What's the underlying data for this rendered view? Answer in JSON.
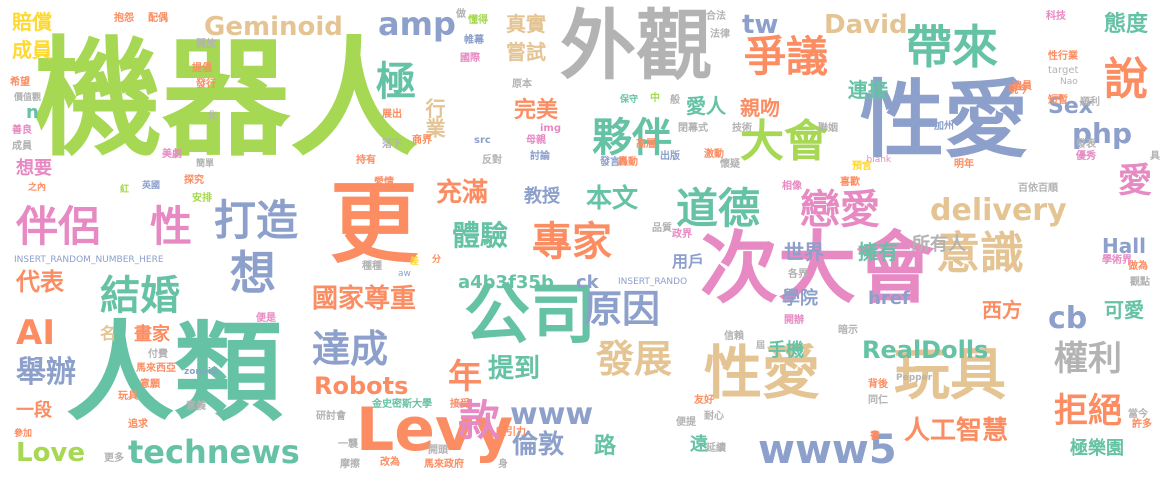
{
  "palette": {
    "green": "#a6d854",
    "teal": "#66c2a5",
    "orange": "#fc8d62",
    "blue": "#8da0cb",
    "pink": "#e78ac3",
    "yellow": "#ffd92f",
    "tan": "#e5c494",
    "gray": "#b3b3b3"
  },
  "words": [
    {
      "text": "機器人"
    },
    {
      "text": "人類"
    },
    {
      "text": "更"
    },
    {
      "text": "外觀"
    },
    {
      "text": "性愛"
    },
    {
      "text": "次大會"
    },
    {
      "text": "公司"
    },
    {
      "text": "Levy"
    },
    {
      "text": "性愛"
    },
    {
      "text": "玩具"
    },
    {
      "text": "帶來"
    },
    {
      "text": "爭議"
    },
    {
      "text": "說"
    },
    {
      "text": "伴侶"
    },
    {
      "text": "性"
    },
    {
      "text": "打造"
    },
    {
      "text": "想"
    },
    {
      "text": "結婚"
    },
    {
      "text": "專家"
    },
    {
      "text": "道德"
    },
    {
      "text": "戀愛"
    },
    {
      "text": "意識"
    },
    {
      "text": "夥伴"
    },
    {
      "text": "大會"
    },
    {
      "text": "極"
    },
    {
      "text": "amp"
    },
    {
      "text": "原因"
    },
    {
      "text": "達成"
    },
    {
      "text": "發展"
    },
    {
      "text": "款"
    },
    {
      "text": "www5"
    },
    {
      "text": "www"
    },
    {
      "text": "technews"
    },
    {
      "text": "AI"
    },
    {
      "text": "舉辦"
    },
    {
      "text": "年"
    },
    {
      "text": "權利"
    },
    {
      "text": "拒絕"
    },
    {
      "text": "體驗"
    },
    {
      "text": "充滿"
    },
    {
      "text": "國家尊重"
    },
    {
      "text": "delivery"
    },
    {
      "text": "Geminoid"
    },
    {
      "text": "David"
    },
    {
      "text": "tw"
    },
    {
      "text": "php"
    },
    {
      "text": "cb"
    },
    {
      "text": "RealDolls"
    },
    {
      "text": "Robots"
    },
    {
      "text": "Love"
    },
    {
      "text": "人工智慧"
    },
    {
      "text": "倫敦"
    },
    {
      "text": "提到"
    },
    {
      "text": "本文"
    },
    {
      "text": "教授"
    },
    {
      "text": "愛"
    },
    {
      "text": "代表"
    },
    {
      "text": "真實"
    },
    {
      "text": "嘗試"
    },
    {
      "text": "完美"
    },
    {
      "text": "行業"
    },
    {
      "text": "愛人"
    },
    {
      "text": "親吻"
    },
    {
      "text": "連接"
    },
    {
      "text": "Sex"
    },
    {
      "text": "態度"
    },
    {
      "text": "西方"
    },
    {
      "text": "可愛"
    },
    {
      "text": "世界"
    },
    {
      "text": "擁有"
    },
    {
      "text": "所有人"
    },
    {
      "text": "學院"
    },
    {
      "text": "手機"
    },
    {
      "text": "Hall"
    },
    {
      "text": "href"
    },
    {
      "text": "極樂園"
    },
    {
      "text": "a4b3f35b"
    },
    {
      "text": "ck"
    },
    {
      "text": "用戶"
    },
    {
      "text": "畫家"
    },
    {
      "text": "一段"
    },
    {
      "text": "想要"
    },
    {
      "text": "賠償"
    },
    {
      "text": "成員"
    },
    {
      "text": "路"
    },
    {
      "text": "遠"
    },
    {
      "text": "n"
    },
    {
      "text": "名"
    },
    {
      "text": "INSERT_RANDOM_NUMBER_HERE"
    },
    {
      "text": "INSERT_RANDO"
    },
    {
      "text": "抱怨"
    },
    {
      "text": "配偶"
    },
    {
      "text": "做"
    },
    {
      "text": "懂得"
    },
    {
      "text": "帷幕"
    },
    {
      "text": "國際"
    },
    {
      "text": "原本"
    },
    {
      "text": "合法"
    },
    {
      "text": "法律"
    },
    {
      "text": "科技"
    },
    {
      "text": "性行業"
    },
    {
      "text": "target"
    },
    {
      "text": "遍員"
    },
    {
      "text": "開放"
    },
    {
      "text": "提倡"
    },
    {
      "text": "發行"
    },
    {
      "text": "希望"
    },
    {
      "text": "價值觀"
    },
    {
      "text": "善良"
    },
    {
      "text": "成員"
    },
    {
      "text": "之內"
    },
    {
      "text": "紅"
    },
    {
      "text": "英國"
    },
    {
      "text": "美劇"
    },
    {
      "text": "探究"
    },
    {
      "text": "簡單"
    },
    {
      "text": "化"
    },
    {
      "text": "安排"
    },
    {
      "text": "展出"
    },
    {
      "text": "落下"
    },
    {
      "text": "商界"
    },
    {
      "text": "持有"
    },
    {
      "text": "愛情"
    },
    {
      "text": "母親"
    },
    {
      "text": "討論"
    },
    {
      "text": "src"
    },
    {
      "text": "img"
    },
    {
      "text": "反對"
    },
    {
      "text": "保守"
    },
    {
      "text": "中"
    },
    {
      "text": "般"
    },
    {
      "text": "閉幕式"
    },
    {
      "text": "技術"
    },
    {
      "text": "聯姻"
    },
    {
      "text": "加州"
    },
    {
      "text": "順利"
    },
    {
      "text": "短暫"
    },
    {
      "text": "現今"
    },
    {
      "text": "發表"
    },
    {
      "text": "優秀"
    },
    {
      "text": "明年"
    },
    {
      "text": "_blank"
    },
    {
      "text": "預言"
    },
    {
      "text": "喜歡"
    },
    {
      "text": "相像"
    },
    {
      "text": "百依百順"
    },
    {
      "text": "做為"
    },
    {
      "text": "觀點"
    },
    {
      "text": "學術界"
    },
    {
      "text": "懷疑"
    },
    {
      "text": "激動"
    },
    {
      "text": "高層"
    },
    {
      "text": "出版"
    },
    {
      "text": "轟動"
    },
    {
      "text": "發言"
    },
    {
      "text": "品質"
    },
    {
      "text": "政界"
    },
    {
      "text": "各界"
    },
    {
      "text": "種種"
    },
    {
      "text": "aw"
    },
    {
      "text": "差"
    },
    {
      "text": "分"
    },
    {
      "text": "便是"
    },
    {
      "text": "開辦"
    },
    {
      "text": "信賴"
    },
    {
      "text": "暗示"
    },
    {
      "text": "屆"
    },
    {
      "text": "付費"
    },
    {
      "text": "馬來西亞"
    },
    {
      "text": "zoneid"
    },
    {
      "text": "意願"
    },
    {
      "text": "Pepper"
    },
    {
      "text": "背後"
    },
    {
      "text": "同仁"
    },
    {
      "text": "玩具"
    },
    {
      "text": "意義"
    },
    {
      "text": "研討會"
    },
    {
      "text": "金史密斯大學"
    },
    {
      "text": "接受"
    },
    {
      "text": "友好"
    },
    {
      "text": "耐心"
    },
    {
      "text": "當今"
    },
    {
      "text": "參加"
    },
    {
      "text": "追求"
    },
    {
      "text": "吸引力"
    },
    {
      "text": "便提"
    },
    {
      "text": "延續"
    },
    {
      "text": "書"
    },
    {
      "text": "許多"
    },
    {
      "text": "更多"
    },
    {
      "text": "一襲"
    },
    {
      "text": "摩擦"
    },
    {
      "text": "改為"
    },
    {
      "text": "開頭"
    },
    {
      "text": "馬來政府"
    },
    {
      "text": "身"
    },
    {
      "text": "具"
    },
    {
      "text": "Nao"
    }
  ]
}
